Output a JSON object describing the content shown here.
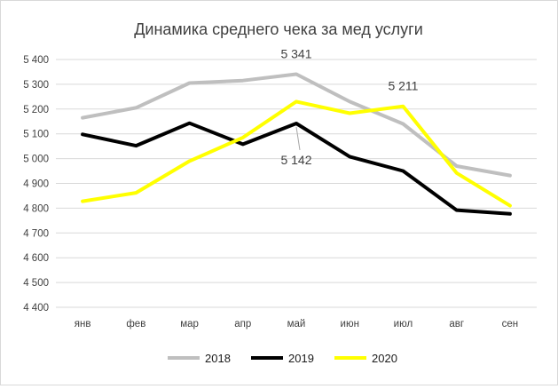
{
  "chart_data": {
    "type": "line",
    "title": "Динамика среднего чека за мед услуги",
    "categories": [
      "янв",
      "фев",
      "мар",
      "апр",
      "май",
      "июн",
      "июл",
      "авг",
      "сен"
    ],
    "ylim": [
      4400,
      5400
    ],
    "yticks": [
      4400,
      4500,
      4600,
      4700,
      4800,
      4900,
      5000,
      5100,
      5200,
      5300,
      5400
    ],
    "ytick_labels": [
      "4 400",
      "4 500",
      "4 600",
      "4 700",
      "4 800",
      "4 900",
      "5 000",
      "5 100",
      "5 200",
      "5 300",
      "5 400"
    ],
    "grid": true,
    "legend_position": "bottom",
    "series": [
      {
        "name": "2018",
        "color": "#bfbfbf",
        "values": [
          5165,
          5205,
          5305,
          5315,
          5341,
          5230,
          5140,
          4970,
          4932
        ]
      },
      {
        "name": "2019",
        "color": "#000000",
        "values": [
          5098,
          5052,
          5143,
          5058,
          5142,
          5008,
          4950,
          4792,
          4777
        ]
      },
      {
        "name": "2020",
        "color": "#ffff00",
        "values": [
          4828,
          4862,
          4990,
          5085,
          5230,
          5183,
          5211,
          4942,
          4810
        ]
      }
    ],
    "annotations": [
      {
        "text": "5 341",
        "series": "2018",
        "category": "май"
      },
      {
        "text": "5 142",
        "series": "2019",
        "category": "май"
      },
      {
        "text": "5 211",
        "series": "2020",
        "category": "июл"
      }
    ]
  }
}
